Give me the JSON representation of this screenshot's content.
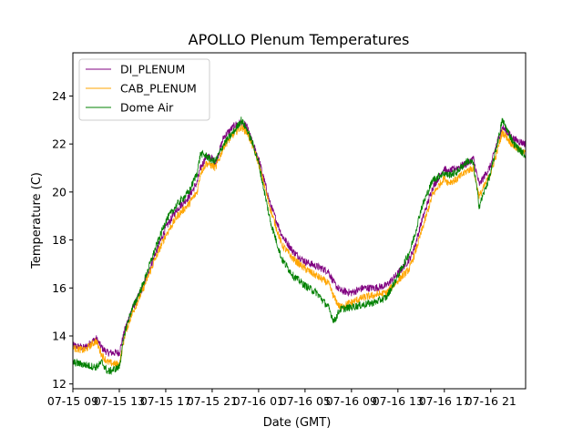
{
  "chart_data": {
    "type": "line",
    "title": "APOLLO Plenum Temperatures",
    "xlabel": "Date (GMT)",
    "ylabel": "Temperature (C)",
    "xlim": [
      0,
      39
    ],
    "ylim": [
      11.8,
      25.8
    ],
    "yticks": [
      12,
      14,
      16,
      18,
      20,
      22,
      24
    ],
    "xticks": [
      {
        "x": 0,
        "label": "07-15 09"
      },
      {
        "x": 4,
        "label": "07-15 13"
      },
      {
        "x": 8,
        "label": "07-15 17"
      },
      {
        "x": 12,
        "label": "07-15 21"
      },
      {
        "x": 16,
        "label": "07-16 01"
      },
      {
        "x": 20,
        "label": "07-16 05"
      },
      {
        "x": 24,
        "label": "07-16 09"
      },
      {
        "x": 28,
        "label": "07-16 13"
      },
      {
        "x": 32,
        "label": "07-16 17"
      },
      {
        "x": 36,
        "label": "07-16 21"
      }
    ],
    "legend": {
      "position": "top-left"
    },
    "series": [
      {
        "name": "DI_PLENUM",
        "color": "#800080",
        "x": [
          0,
          1,
          2,
          2.5,
          3,
          4,
          4.5,
          5,
          6,
          7,
          8,
          9,
          10,
          10.7,
          11,
          11.5,
          12,
          12.3,
          13,
          14,
          14.5,
          15,
          15.5,
          16,
          17,
          18,
          19,
          20,
          21,
          22,
          22.5,
          23,
          24,
          25,
          26,
          27,
          28,
          29,
          29.5,
          30,
          31,
          32,
          32.3,
          33,
          34,
          34.5,
          35,
          36,
          36.5,
          37,
          38,
          39
        ],
        "values": [
          13.6,
          13.5,
          13.9,
          13.5,
          13.3,
          13.3,
          14.3,
          15.0,
          16.0,
          17.3,
          18.5,
          19.3,
          19.8,
          20.4,
          21.0,
          21.5,
          21.4,
          21.2,
          22.3,
          22.8,
          22.9,
          22.7,
          22.0,
          21.4,
          19.5,
          18.2,
          17.5,
          17.1,
          16.9,
          16.7,
          16.2,
          15.9,
          15.8,
          16.0,
          16.0,
          16.1,
          16.6,
          17.2,
          17.8,
          18.7,
          20.2,
          21.0,
          20.8,
          21.0,
          21.2,
          21.4,
          20.3,
          21.1,
          22.0,
          22.7,
          22.2,
          22.0
        ]
      },
      {
        "name": "CAB_PLENUM",
        "color": "#ffa500",
        "x": [
          0,
          1,
          2,
          2.5,
          3,
          4,
          4.5,
          5,
          6,
          7,
          8,
          9,
          10,
          10.7,
          11,
          11.5,
          12,
          12.3,
          13,
          14,
          14.5,
          15,
          15.5,
          16,
          17,
          18,
          19,
          20,
          21,
          22,
          22.5,
          23,
          24,
          25,
          26,
          27,
          28,
          29,
          29.5,
          30,
          31,
          32,
          32.3,
          33,
          34,
          34.5,
          35,
          36,
          36.5,
          37,
          38,
          39
        ],
        "values": [
          13.5,
          13.4,
          13.8,
          13.2,
          12.9,
          12.8,
          14.1,
          14.8,
          15.9,
          17.1,
          18.2,
          19.0,
          19.5,
          20.0,
          20.8,
          21.2,
          21.1,
          21.0,
          21.9,
          22.5,
          22.7,
          22.5,
          21.9,
          21.2,
          19.3,
          17.8,
          17.2,
          16.8,
          16.5,
          16.2,
          15.6,
          15.2,
          15.4,
          15.6,
          15.7,
          15.8,
          16.3,
          16.8,
          17.5,
          18.3,
          19.9,
          20.6,
          20.4,
          20.5,
          20.9,
          21.0,
          19.8,
          20.8,
          21.6,
          22.5,
          21.9,
          21.6
        ]
      },
      {
        "name": "Dome Air",
        "color": "#008000",
        "x": [
          0,
          1,
          2,
          2.5,
          3,
          4,
          4.5,
          5,
          6,
          7,
          8,
          9,
          10,
          10.7,
          11,
          11.5,
          12,
          12.3,
          13,
          14,
          14.5,
          15,
          15.5,
          16,
          17,
          18,
          19,
          20,
          21,
          22,
          22.5,
          23,
          24,
          25,
          26,
          27,
          28,
          29,
          29.5,
          30,
          31,
          32,
          32.3,
          33,
          34,
          34.5,
          35,
          36,
          36.5,
          37,
          38,
          39
        ],
        "values": [
          12.9,
          12.8,
          12.7,
          12.9,
          12.5,
          12.7,
          14.2,
          15.0,
          16.1,
          17.5,
          18.8,
          19.5,
          20.0,
          20.8,
          21.6,
          21.5,
          21.3,
          21.3,
          22.0,
          22.6,
          23.0,
          22.6,
          22.0,
          21.2,
          18.8,
          17.2,
          16.5,
          16.1,
          15.8,
          15.2,
          14.6,
          15.1,
          15.2,
          15.3,
          15.4,
          15.6,
          16.5,
          17.5,
          18.3,
          19.3,
          20.5,
          20.8,
          20.7,
          20.8,
          21.3,
          21.2,
          19.4,
          20.8,
          21.9,
          23.0,
          22.0,
          21.5
        ]
      }
    ]
  }
}
